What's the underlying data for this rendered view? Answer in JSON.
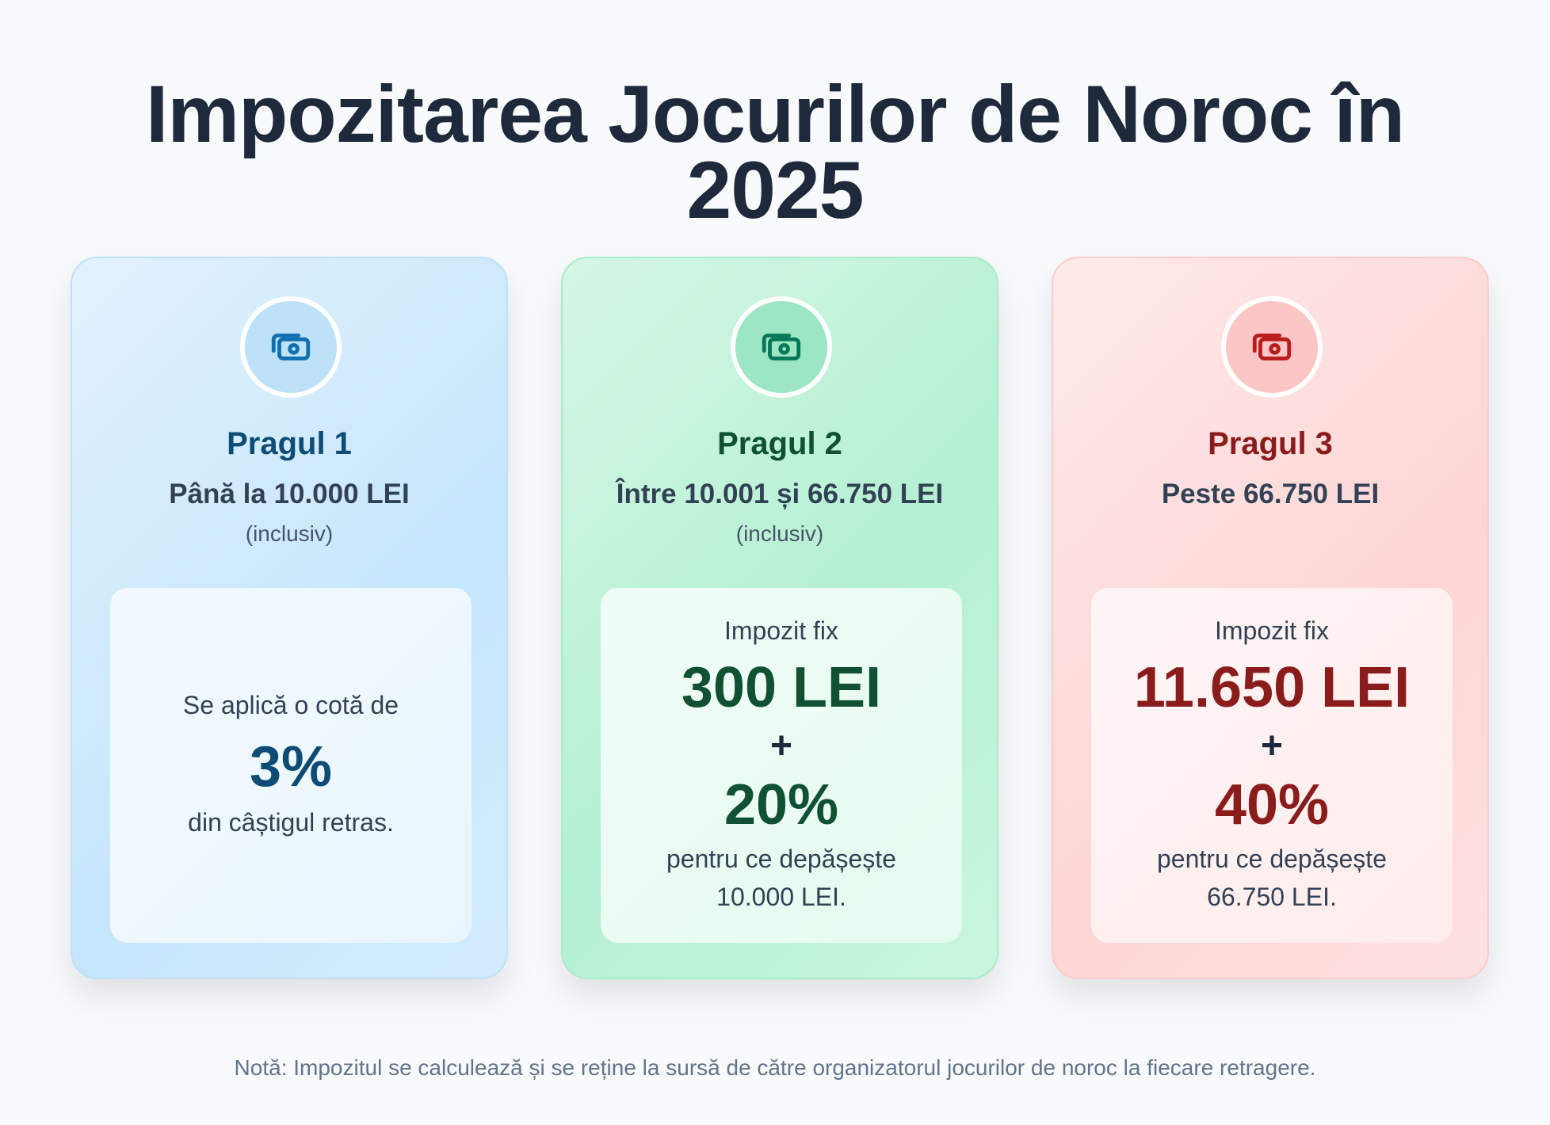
{
  "title": {
    "line1": "Impozitarea Jocurilor de Noroc în",
    "line2": "2025"
  },
  "tiers": [
    {
      "icon": "money-icon",
      "accent": "#0f4c75",
      "name": "Pragul 1",
      "range": "Până la 10.000 LEI",
      "note": "(inclusiv)",
      "rate_intro": "Se aplică o cotă de",
      "rate": "3%",
      "rate_suffix": "din câștigul retras."
    },
    {
      "icon": "money-icon",
      "accent": "#0f5132",
      "name": "Pragul 2",
      "range": "Între 10.001 și 66.750 LEI",
      "note": "(inclusiv)",
      "fixed_label": "Impozit fix",
      "fixed_amount": "300 LEI",
      "plus": "+",
      "rate": "20%",
      "desc_line1": "pentru ce depășește",
      "desc_line2": "10.000 LEI."
    },
    {
      "icon": "money-icon",
      "accent": "#8b1c1c",
      "name": "Pragul 3",
      "range": "Peste 66.750 LEI",
      "fixed_label": "Impozit fix",
      "fixed_amount": "11.650 LEI",
      "plus": "+",
      "rate": "40%",
      "desc_line1": "pentru ce depășește",
      "desc_line2": "66.750 LEI."
    }
  ],
  "footer_note": "Notă: Impozitul se calculează și se reține la sursă de către organizatorul jocurilor de noroc la fiecare retragere."
}
